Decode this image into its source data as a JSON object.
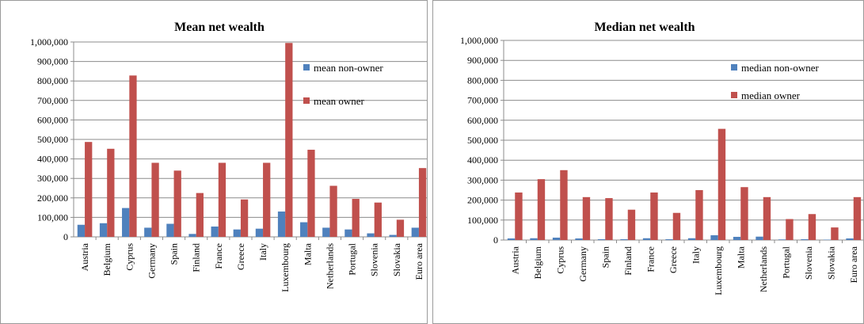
{
  "colors": {
    "non_owner": "#4F81BD",
    "owner": "#C0504D"
  },
  "chart_data": [
    {
      "type": "bar",
      "title": "Mean net wealth",
      "xlabel": "",
      "ylabel": "",
      "ylim": [
        0,
        1000000
      ],
      "yticks": [
        "0",
        "100,000",
        "200,000",
        "300,000",
        "400,000",
        "500,000",
        "600,000",
        "700,000",
        "800,000",
        "900,000",
        "1,000,000"
      ],
      "grid": true,
      "legend": "right",
      "categories": [
        "Austria",
        "Belgium",
        "Cyprus",
        "Germany",
        "Spain",
        "Finland",
        "France",
        "Greece",
        "Italy",
        "Luxembourg",
        "Malta",
        "Netherlands",
        "Portugal",
        "Slovenia",
        "Slovakia",
        "Euro area"
      ],
      "series": [
        {
          "name": "mean non-owner",
          "values": [
            62000,
            70000,
            148000,
            47000,
            67000,
            15000,
            53000,
            38000,
            42000,
            130000,
            75000,
            47000,
            38000,
            18000,
            10000,
            47000
          ]
        },
        {
          "name": "mean owner",
          "values": [
            487000,
            452000,
            828000,
            380000,
            340000,
            225000,
            380000,
            192000,
            380000,
            995000,
            447000,
            262000,
            195000,
            176000,
            88000,
            353000
          ]
        }
      ]
    },
    {
      "type": "bar",
      "title": "Median net wealth",
      "xlabel": "",
      "ylabel": "",
      "ylim": [
        0,
        1000000
      ],
      "yticks": [
        "0",
        "100,000",
        "200,000",
        "300,000",
        "400,000",
        "500,000",
        "600,000",
        "700,000",
        "800,000",
        "900,000",
        "1,000,000"
      ],
      "grid": true,
      "legend": "right",
      "categories": [
        "Austria",
        "Belgium",
        "Cyprus",
        "Germany",
        "Spain",
        "Finland",
        "France",
        "Greece",
        "Italy",
        "Luxembourg",
        "Malta",
        "Netherlands",
        "Portugal",
        "Slovenia",
        "Slovakia",
        "Euro area"
      ],
      "series": [
        {
          "name": "median non-owner",
          "values": [
            8000,
            9000,
            12000,
            8000,
            4000,
            4000,
            9000,
            4000,
            9000,
            24000,
            16000,
            17000,
            3000,
            4000,
            2000,
            8000
          ]
        },
        {
          "name": "median owner",
          "values": [
            238000,
            305000,
            350000,
            215000,
            210000,
            152000,
            238000,
            136000,
            250000,
            557000,
            265000,
            215000,
            105000,
            130000,
            63000,
            215000
          ]
        }
      ]
    }
  ]
}
